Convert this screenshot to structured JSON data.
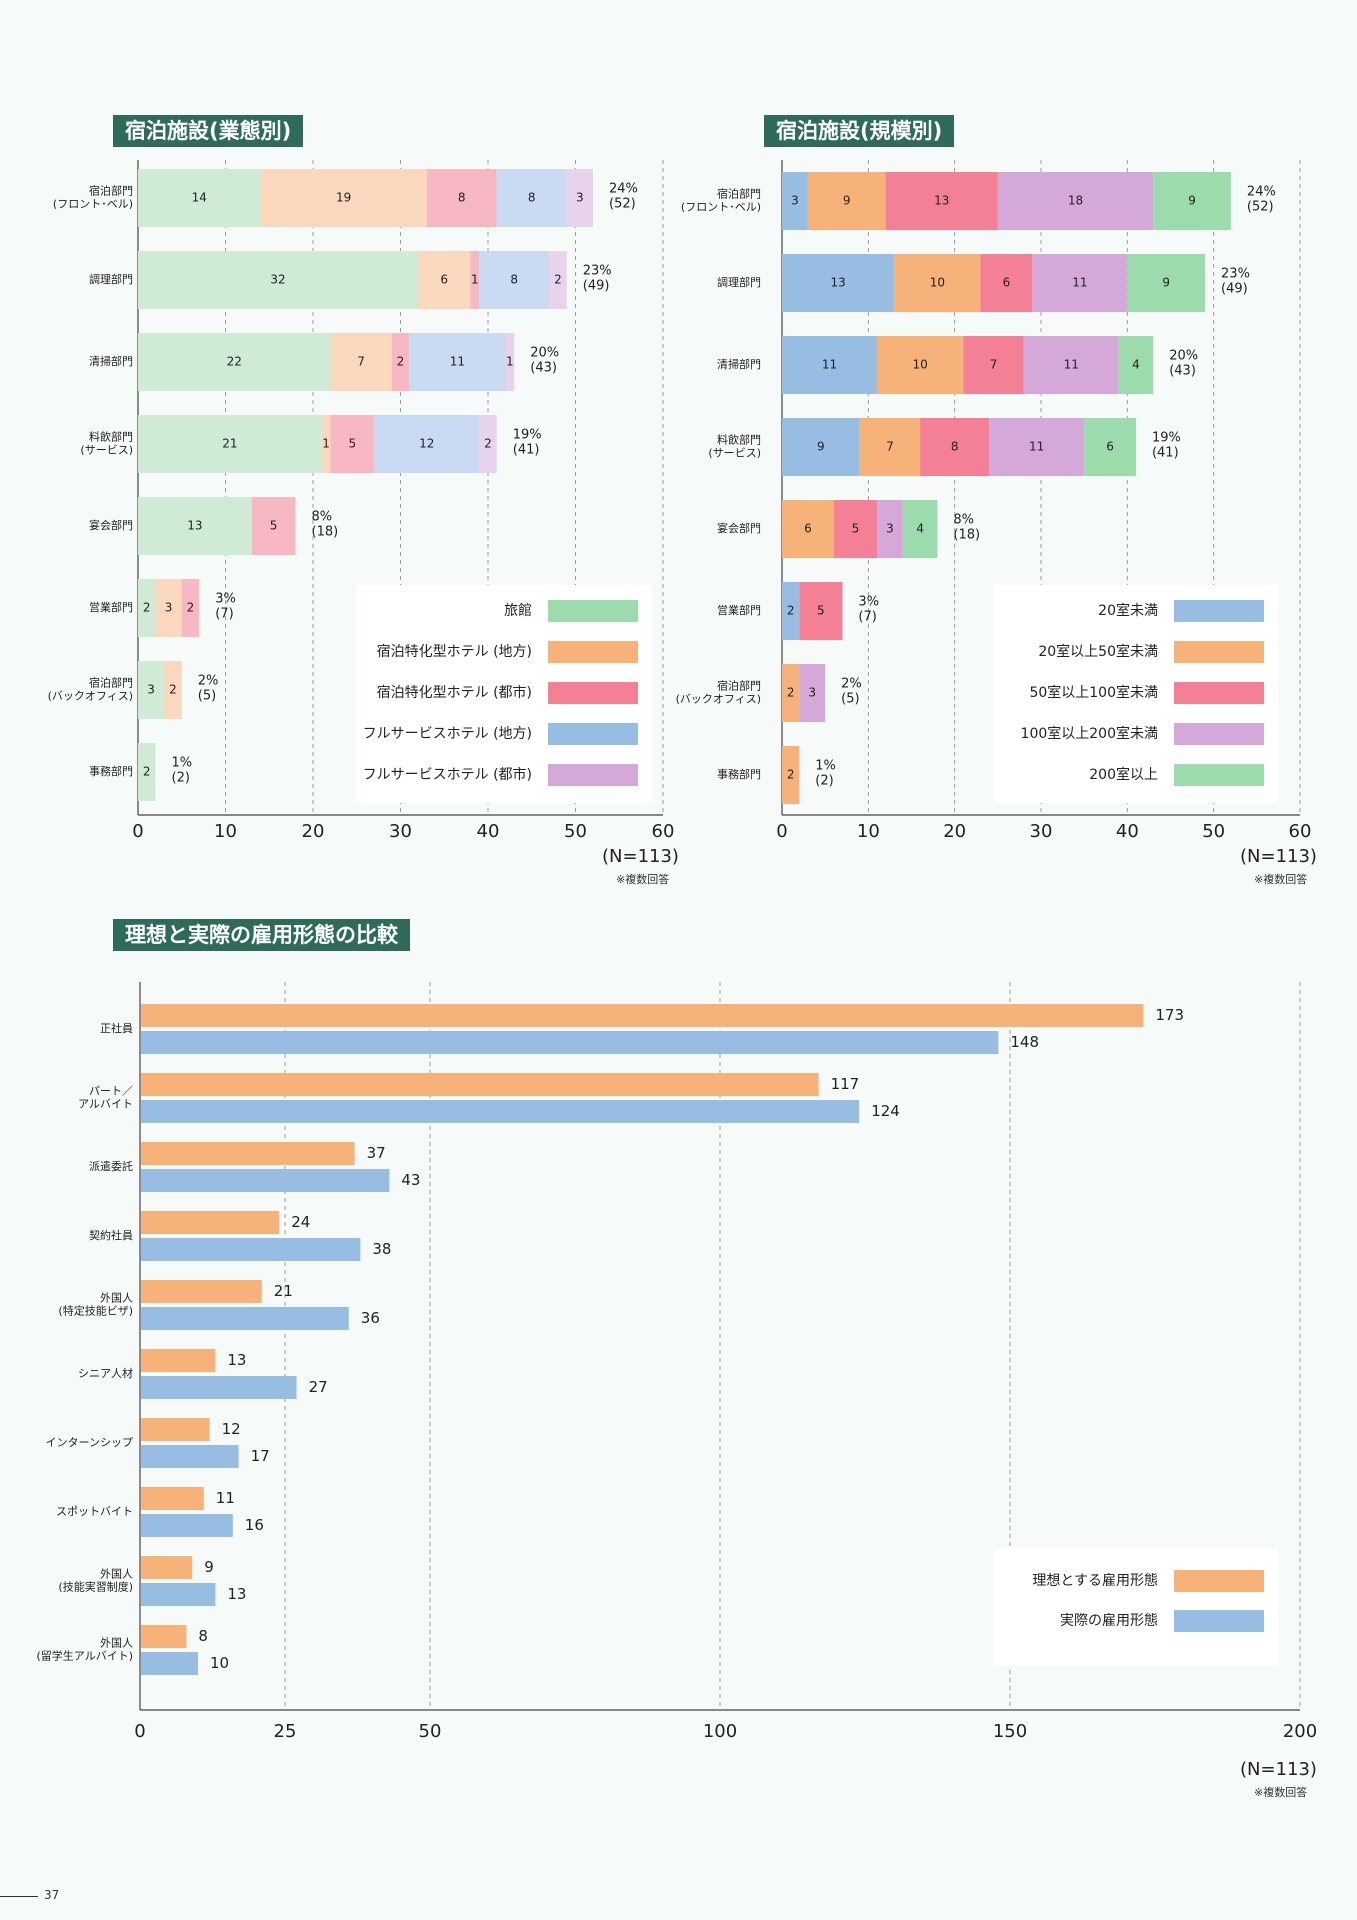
{
  "page_number": "37",
  "charts": {
    "by_type": {
      "title": "宿泊施設(業態別)",
      "n_label": "(N=113)",
      "note": "※複数回答",
      "legend": [
        "旅館",
        "宿泊特化型ホテル (地方)",
        "宿泊特化型ホテル (都市)",
        "フルサービスホテル (地方)",
        "フルサービスホテル (都市)"
      ]
    },
    "by_size": {
      "title": "宿泊施設(規模別)",
      "n_label": "(N=113)",
      "note": "※複数回答",
      "legend": [
        "20室未満",
        "20室以上50室未満",
        "50室以上100室未満",
        "100室以上200室未満",
        "200室以上"
      ]
    },
    "employment": {
      "title": "理想と実際の雇用形態の比較",
      "n_label": "(N=113)",
      "note": "※複数回答",
      "legend": [
        "理想とする雇用形態",
        "実際の雇用形態"
      ]
    }
  },
  "chart_data": [
    {
      "type": "bar",
      "orientation": "horizontal",
      "stacked": true,
      "title": "宿泊施設(業態別)",
      "categories": [
        "宿泊部門\n(フロント･ベル)",
        "調理部門",
        "清掃部門",
        "料飲部門\n(サービス)",
        "宴会部門",
        "営業部門",
        "宿泊部門\n(バックオフィス)",
        "事務部門"
      ],
      "series": [
        {
          "name": "旅館",
          "color": "#cfead5",
          "values": [
            14,
            32,
            22,
            21,
            13,
            2,
            3,
            2
          ]
        },
        {
          "name": "宿泊特化型ホテル (地方)",
          "color": "#f9d8bd",
          "values": [
            19,
            6,
            7,
            1,
            0,
            3,
            2,
            0
          ]
        },
        {
          "name": "宿泊特化型ホテル (都市)",
          "color": "#f7b8c3",
          "values": [
            8,
            1,
            2,
            5,
            5,
            2,
            0,
            0
          ]
        },
        {
          "name": "フルサービスホテル (地方)",
          "color": "#c9daf2",
          "values": [
            8,
            8,
            11,
            12,
            0,
            0,
            0,
            0
          ]
        },
        {
          "name": "フルサービスホテル (都市)",
          "color": "#e7d4ec",
          "values": [
            3,
            2,
            1,
            2,
            0,
            0,
            0,
            0
          ]
        }
      ],
      "totals": [
        "24%\n(52)",
        "23%\n(49)",
        "20%\n(43)",
        "19%\n(41)",
        "8%\n(18)",
        "3%\n(7)",
        "2%\n(5)",
        "1%\n(2)"
      ],
      "xlim": [
        0,
        60
      ],
      "xticks": [
        0,
        10,
        20,
        30,
        40,
        50,
        60
      ],
      "grid": true,
      "legend_position": "bottom-right"
    },
    {
      "type": "bar",
      "orientation": "horizontal",
      "stacked": true,
      "title": "宿泊施設(規模別)",
      "categories": [
        "宿泊部門\n(フロント･ベル)",
        "調理部門",
        "清掃部門",
        "料飲部門\n(サービス)",
        "宴会部門",
        "営業部門",
        "宿泊部門\n(バックオフィス)",
        "事務部門"
      ],
      "series": [
        {
          "name": "20室未満",
          "color": "#98bde3",
          "values": [
            3,
            13,
            11,
            9,
            0,
            2,
            0,
            0
          ]
        },
        {
          "name": "20室以上50室未満",
          "color": "#f7b27a",
          "values": [
            9,
            10,
            10,
            7,
            6,
            0,
            2,
            2
          ]
        },
        {
          "name": "50室以上100室未満",
          "color": "#f38094",
          "values": [
            13,
            6,
            7,
            8,
            5,
            5,
            0,
            0
          ]
        },
        {
          "name": "100室以上200室未満",
          "color": "#d4a8d9",
          "values": [
            18,
            11,
            11,
            11,
            3,
            0,
            3,
            0
          ]
        },
        {
          "name": "200室以上",
          "color": "#9cdbab",
          "values": [
            9,
            9,
            4,
            6,
            4,
            0,
            0,
            0
          ]
        }
      ],
      "totals": [
        "24%\n(52)",
        "23%\n(49)",
        "20%\n(43)",
        "19%\n(41)",
        "8%\n(18)",
        "3%\n(7)",
        "2%\n(5)",
        "1%\n(2)"
      ],
      "xlim": [
        0,
        60
      ],
      "xticks": [
        0,
        10,
        20,
        30,
        40,
        50,
        60
      ],
      "grid": true,
      "legend_position": "bottom-right"
    },
    {
      "type": "bar",
      "orientation": "horizontal",
      "stacked": false,
      "title": "理想と実際の雇用形態の比較",
      "categories": [
        "正社員",
        "パート／\nアルバイト",
        "派遣委託",
        "契約社員",
        "外国人\n(特定技能ビザ)",
        "シニア人材",
        "インターンシップ",
        "スポットバイト",
        "外国人\n(技能実習制度)",
        "外国人\n(留学生アルバイト)"
      ],
      "series": [
        {
          "name": "理想とする雇用形態",
          "color": "#f7b27a",
          "values": [
            173,
            117,
            37,
            24,
            21,
            13,
            12,
            11,
            9,
            8
          ]
        },
        {
          "name": "実際の雇用形態",
          "color": "#98bde3",
          "values": [
            148,
            124,
            43,
            38,
            36,
            27,
            17,
            16,
            13,
            10
          ]
        }
      ],
      "xlim": [
        0,
        200
      ],
      "xticks": [
        0,
        25,
        50,
        100,
        150,
        200
      ],
      "grid": true,
      "legend_position": "bottom-right"
    }
  ]
}
